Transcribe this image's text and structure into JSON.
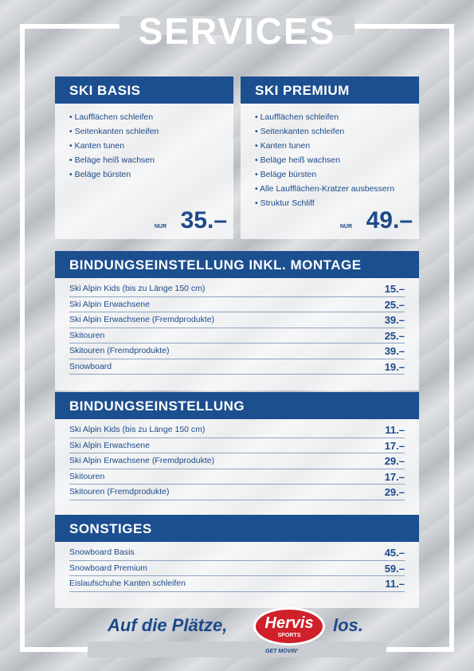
{
  "header": {
    "title": "SERVICES"
  },
  "packages": [
    {
      "title": "SKI BASIS",
      "items": [
        "Laufflächen schleifen",
        "Seitenkanten schleifen",
        "Kanten tunen",
        "Beläge heiß wachsen",
        "Beläge bürsten"
      ],
      "prefix": "NUR",
      "price": "35.–"
    },
    {
      "title": "SKI PREMIUM",
      "items": [
        "Laufflächen schleifen",
        "Seitenkanten schleifen",
        "Kanten tunen",
        "Beläge heiß wachsen",
        "Beläge bürsten",
        "Alle Laufflächen-Kratzer ausbessern",
        "Struktur Schliff"
      ],
      "prefix": "NUR",
      "price": "49.–"
    }
  ],
  "sections": [
    {
      "title": "BINDUNGSEINSTELLUNG INKL. MONTAGE",
      "rows": [
        [
          "Ski Alpin Kids (bis zu Länge 150 cm)",
          "15.–"
        ],
        [
          "Ski Alpin Erwachsene",
          "25.–"
        ],
        [
          "Ski Alpin Erwachsene (Fremdprodukte)",
          "39.–"
        ],
        [
          "Skitouren",
          "25.–"
        ],
        [
          "Skitouren (Fremdprodukte)",
          "39.–"
        ],
        [
          "Snowboard",
          "19.–"
        ]
      ]
    },
    {
      "title": "BINDUNGSEINSTELLUNG",
      "rows": [
        [
          "Ski Alpin Kids (bis zu Länge 150 cm)",
          "11.–"
        ],
        [
          "Ski Alpin Erwachsene",
          "17.–"
        ],
        [
          "Ski Alpin Erwachsene (Fremdprodukte)",
          "29.–"
        ],
        [
          "Skitouren",
          "17.–"
        ],
        [
          "Skitouren (Fremdprodukte)",
          "29.–"
        ]
      ]
    },
    {
      "title": "SONSTIGES",
      "rows": [
        [
          "Snowboard Basis",
          "45.–"
        ],
        [
          "Snowboard Premium",
          "59.–"
        ],
        [
          "Eislaufschuhe Kanten schleifen",
          "11.–"
        ]
      ]
    }
  ],
  "footer": {
    "slogan_start": "Auf die Plätze,",
    "slogan_end": "los.",
    "logo": "Hervis",
    "logo_sub": "SPORTS",
    "tagline": "GET MOVIN'"
  }
}
